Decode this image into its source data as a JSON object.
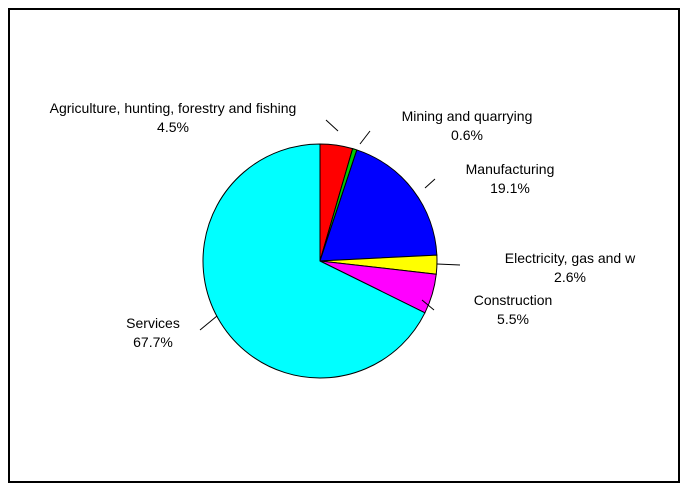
{
  "chart_data": {
    "type": "pie",
    "title": "",
    "slices": [
      {
        "label": "Agriculture, hunting, forestry and fishing",
        "value_label": "4.5%",
        "value": 4.5,
        "color": "#ff0000"
      },
      {
        "label": "Mining and quarrying",
        "value_label": "0.6%",
        "value": 0.6,
        "color": "#00cc00"
      },
      {
        "label": "Manufacturing",
        "value_label": "19.1%",
        "value": 19.1,
        "color": "#0000ff"
      },
      {
        "label": "Electricity, gas and w",
        "value_label": "2.6%",
        "value": 2.6,
        "color": "#ffff00"
      },
      {
        "label": "Construction",
        "value_label": "5.5%",
        "value": 5.5,
        "color": "#ff00ff"
      },
      {
        "label": "Services",
        "value_label": "67.7%",
        "value": 67.7,
        "color": "#00ffff"
      }
    ]
  }
}
